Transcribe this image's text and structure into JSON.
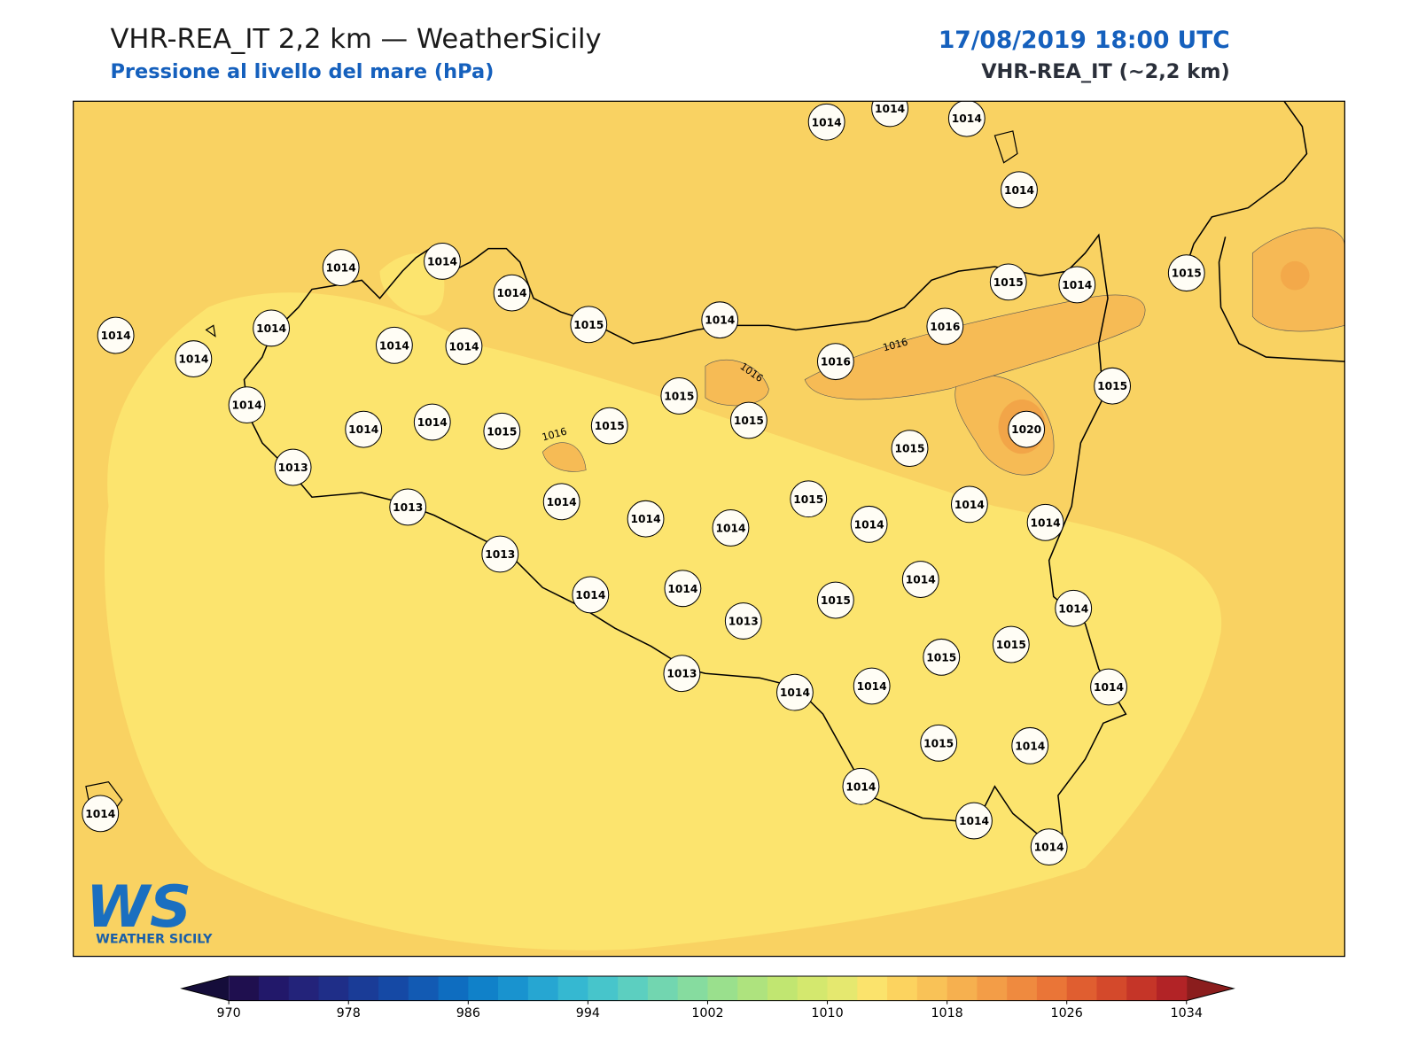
{
  "header": {
    "title": "VHR-REA_IT 2,2 km — WeatherSicily",
    "subtitle": "Pressione al livello del mare (hPa)",
    "datetime": "17/08/2019 18:00 UTC",
    "model": "VHR-REA_IT (~2,2 km)"
  },
  "map": {
    "stations": [
      1014,
      1014,
      1014,
      1014,
      1014,
      1014,
      1014,
      1015,
      1014,
      1015,
      1014,
      1015,
      1014,
      1014,
      1014,
      1014,
      1014,
      1016,
      1016,
      1015,
      1015,
      1014,
      1014,
      1014,
      1015,
      1015,
      1015,
      1020,
      1015,
      1013,
      1013,
      1014,
      1014,
      1014,
      1015,
      1014,
      1014,
      1014,
      1013,
      1014,
      1014,
      1014,
      1015,
      1014,
      1013,
      1015,
      1015,
      1013,
      1014,
      1014,
      1014,
      1015,
      1014,
      1014,
      1014,
      1014,
      1014
    ],
    "contour_labels": [
      "1016",
      "1016",
      "1016"
    ]
  },
  "colorbar": {
    "lim": [
      970,
      1034
    ],
    "ticks": [
      970,
      978,
      986,
      994,
      1002,
      1010,
      1018,
      1026,
      1034
    ],
    "colors": [
      "#1f0f4f",
      "#22186a",
      "#23237a",
      "#1f2e88",
      "#1a3c97",
      "#1549a5",
      "#125ab3",
      "#0e6dc0",
      "#1081c9",
      "#1993cf",
      "#26a6d2",
      "#35b8d1",
      "#47c5cb",
      "#5ccfc0",
      "#72d6b0",
      "#86dc9f",
      "#9ae08d",
      "#aee37e",
      "#c1e671",
      "#d4e86e",
      "#e5e86f",
      "#fbe36c",
      "#fcd35f",
      "#f9c257",
      "#f6b04f",
      "#f39d47",
      "#ef8a3f",
      "#ea7537",
      "#e05e30",
      "#d4492b",
      "#c53528",
      "#b22326"
    ]
  },
  "logo": {
    "mark": "WS",
    "name": "WEATHER SICILY"
  }
}
